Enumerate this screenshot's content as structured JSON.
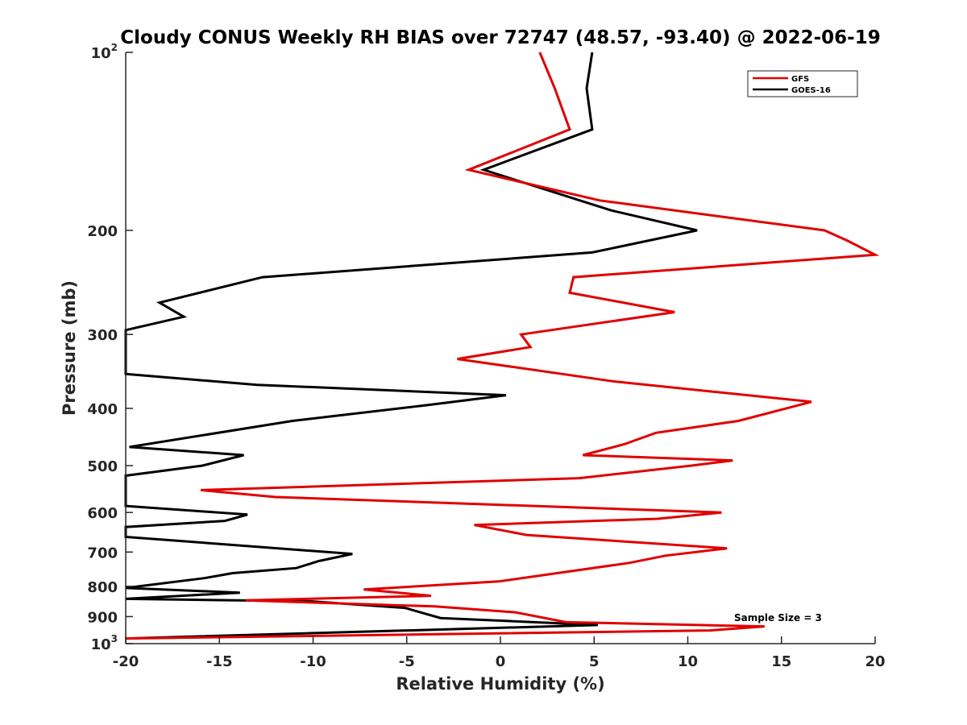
{
  "chart_data": {
    "type": "line",
    "title": "Cloudy CONUS Weekly RH BIAS over 72747 (48.57, -93.40) @ 2022-06-19",
    "xlabel": "Relative Humidity (%)",
    "ylabel": "Pressure (mb)",
    "xlim": [
      -20,
      20
    ],
    "ylim": [
      100,
      1000
    ],
    "yscale": "log",
    "y_reversed": true,
    "x_ticks": [
      "-20",
      "-15",
      "-10",
      "-5",
      "0",
      "5",
      "10",
      "15",
      "20"
    ],
    "x_tick_values": [
      -20,
      -15,
      -10,
      -5,
      0,
      5,
      10,
      15,
      20
    ],
    "y_ticks": [
      {
        "value": 100,
        "base": "10",
        "exp": "2"
      },
      {
        "value": 200,
        "label": "200"
      },
      {
        "value": 300,
        "label": "300"
      },
      {
        "value": 400,
        "label": "400"
      },
      {
        "value": 500,
        "label": "500"
      },
      {
        "value": 600,
        "label": "600"
      },
      {
        "value": 700,
        "label": "700"
      },
      {
        "value": 800,
        "label": "800"
      },
      {
        "value": 900,
        "label": "900"
      },
      {
        "value": 1000,
        "base": "10",
        "exp": "3"
      }
    ],
    "legend_position": "top-right",
    "annotation": "Sample Size = 3",
    "series": [
      {
        "name": "GFS",
        "color": "#e00000",
        "points": [
          [
            2.1,
            100
          ],
          [
            2.9,
            115
          ],
          [
            3.7,
            135
          ],
          [
            -1.7,
            158
          ],
          [
            5.3,
            178
          ],
          [
            17.3,
            200
          ],
          [
            18.5,
            208
          ],
          [
            20.0,
            220
          ],
          [
            3.9,
            240
          ],
          [
            3.7,
            255
          ],
          [
            9.3,
            275
          ],
          [
            1.1,
            300
          ],
          [
            1.6,
            315
          ],
          [
            -2.3,
            330
          ],
          [
            6.0,
            360
          ],
          [
            16.6,
            390
          ],
          [
            12.7,
            420
          ],
          [
            8.3,
            440
          ],
          [
            6.6,
            460
          ],
          [
            4.4,
            480
          ],
          [
            12.4,
            490
          ],
          [
            10.2,
            500
          ],
          [
            4.2,
            525
          ],
          [
            -16.0,
            550
          ],
          [
            -12.0,
            565
          ],
          [
            11.8,
            600
          ],
          [
            8.4,
            615
          ],
          [
            -1.4,
            630
          ],
          [
            1.4,
            655
          ],
          [
            12.1,
            690
          ],
          [
            8.8,
            710
          ],
          [
            6.9,
            730
          ],
          [
            -0.1,
            785
          ],
          [
            -7.3,
            810
          ],
          [
            -3.7,
            830
          ],
          [
            -13.6,
            845
          ],
          [
            -3.5,
            865
          ],
          [
            0.8,
            885
          ],
          [
            3.5,
            920
          ],
          [
            14.1,
            935
          ],
          [
            11.2,
            950
          ],
          [
            -20.0,
            980
          ]
        ]
      },
      {
        "name": "GOES-16",
        "color": "#000000",
        "points": [
          [
            4.9,
            100
          ],
          [
            4.6,
            115
          ],
          [
            4.9,
            135
          ],
          [
            -0.9,
            158
          ],
          [
            5.9,
            185
          ],
          [
            10.5,
            200
          ],
          [
            4.9,
            218
          ],
          [
            -12.7,
            240
          ],
          [
            -18.2,
            265
          ],
          [
            -16.9,
            280
          ],
          [
            -20.0,
            295
          ],
          [
            -20.0,
            350
          ],
          [
            -13.0,
            365
          ],
          [
            0.3,
            380
          ],
          [
            -3.9,
            395
          ],
          [
            -11.1,
            420
          ],
          [
            -19.8,
            465
          ],
          [
            -13.7,
            480
          ],
          [
            -15.9,
            500
          ],
          [
            -20.0,
            520
          ],
          [
            -20.0,
            585
          ],
          [
            -13.5,
            605
          ],
          [
            -14.7,
            620
          ],
          [
            -20.0,
            635
          ],
          [
            -20.0,
            660
          ],
          [
            -7.9,
            705
          ],
          [
            -9.7,
            725
          ],
          [
            -10.9,
            745
          ],
          [
            -14.3,
            760
          ],
          [
            -15.8,
            775
          ],
          [
            -20.0,
            805
          ],
          [
            -13.9,
            820
          ],
          [
            -20.0,
            840
          ],
          [
            -10.2,
            848
          ],
          [
            -5.1,
            870
          ],
          [
            -4.0,
            890
          ],
          [
            -3.2,
            905
          ],
          [
            5.2,
            930
          ],
          [
            -20.0,
            980
          ]
        ]
      }
    ]
  }
}
